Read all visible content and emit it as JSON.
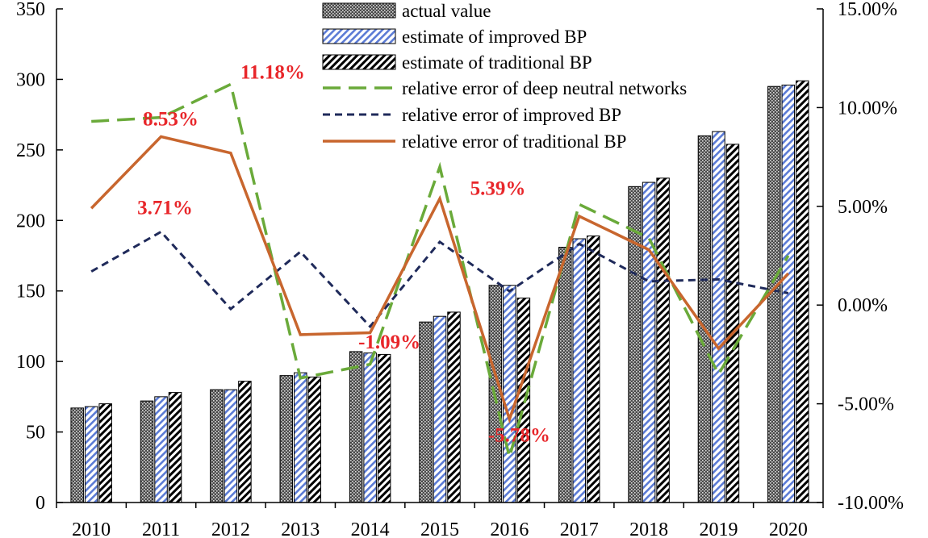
{
  "chart_data": {
    "type": "bar",
    "title": "",
    "xlabel": "",
    "ylabel": "",
    "categories": [
      "2010",
      "2011",
      "2012",
      "2013",
      "2014",
      "2015",
      "2016",
      "2017",
      "2018",
      "2019",
      "2020"
    ],
    "ylim": [
      0,
      350
    ],
    "y_ticks": [
      0,
      50,
      100,
      150,
      200,
      250,
      300,
      350
    ],
    "y_tick_labels": [
      "0",
      "50",
      "100",
      "150",
      "200",
      "250",
      "300",
      "350"
    ],
    "y2lim": [
      -10,
      15
    ],
    "y2_ticks": [
      -10,
      -5,
      0,
      5,
      10,
      15
    ],
    "y2_tick_labels": [
      "-10.00%",
      "-5.00%",
      "0.00%",
      "5.00%",
      "10.00%",
      "15.00%"
    ],
    "bar_series": [
      {
        "name": "actual value",
        "pattern": "dots",
        "values": [
          67,
          72,
          80,
          90,
          107,
          128,
          154,
          181,
          224,
          260,
          295
        ]
      },
      {
        "name": "estimate of improved BP",
        "pattern": "blue-diagonal",
        "values": [
          68,
          75,
          80,
          92,
          106,
          132,
          154,
          187,
          227,
          263,
          296
        ]
      },
      {
        "name": "estimate of traditional BP",
        "pattern": "black-diagonal",
        "values": [
          70,
          78,
          86,
          89,
          105,
          135,
          145,
          189,
          230,
          254,
          299
        ]
      }
    ],
    "line_series": [
      {
        "name": "relative error of deep neutral networks",
        "axis": "right",
        "color": "#6aaa3a",
        "dash": "long-dash",
        "values": [
          9.3,
          9.5,
          11.18,
          -3.7,
          -3.0,
          7.0,
          -7.7,
          5.1,
          3.4,
          -3.5,
          2.5
        ]
      },
      {
        "name": "relative error of improved BP",
        "axis": "right",
        "color": "#1f2a5a",
        "dash": "short-dash",
        "values": [
          1.7,
          3.71,
          -0.2,
          2.7,
          -1.09,
          3.2,
          0.7,
          3.1,
          1.2,
          1.3,
          0.6
        ]
      },
      {
        "name": "relative error of traditional BP",
        "axis": "right",
        "color": "#c8662e",
        "dash": "solid",
        "values": [
          4.9,
          8.53,
          7.7,
          -1.5,
          -1.4,
          5.39,
          -5.78,
          4.5,
          2.8,
          -2.2,
          1.6
        ]
      }
    ],
    "annotations": [
      {
        "text": "11.18%",
        "color": "#e8262a"
      },
      {
        "text": "8.53%",
        "color": "#e8262a"
      },
      {
        "text": "3.71%",
        "color": "#e8262a"
      },
      {
        "text": "5.39%",
        "color": "#e8262a"
      },
      {
        "text": "-1.09%",
        "color": "#e8262a"
      },
      {
        "text": "-5.78%",
        "color": "#e8262a"
      }
    ],
    "legend": {
      "placement": "top-center"
    },
    "grid": false
  }
}
